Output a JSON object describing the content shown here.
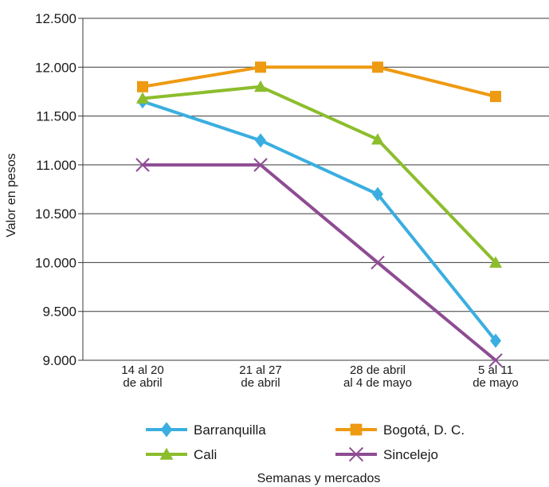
{
  "chart_data": {
    "type": "line",
    "xlabel": "Semanas y mercados",
    "ylabel": "Valor en pesos",
    "categories": [
      [
        "14 al 20",
        "de abril"
      ],
      [
        "21 al 27",
        "de abril"
      ],
      [
        "28 de abril",
        "al 4 de mayo"
      ],
      [
        "5 al 11",
        "de mayo"
      ]
    ],
    "yticks": [
      9000,
      9500,
      10000,
      10500,
      11000,
      11500,
      12000,
      12500
    ],
    "ytick_labels": [
      "9.000",
      "9.500",
      "10.000",
      "10.500",
      "11.000",
      "11.500",
      "12.000",
      "12.500"
    ],
    "ylim": [
      9000,
      12500
    ],
    "grid": "horizontal",
    "legend_position": "bottom",
    "series": [
      {
        "name": "Barranquilla",
        "values": [
          11650,
          11250,
          10700,
          9200
        ],
        "color": "#3aaee0",
        "marker": "diamond"
      },
      {
        "name": "Bogotá, D. C.",
        "values": [
          11800,
          12000,
          12000,
          11700
        ],
        "color": "#ee9a12",
        "marker": "square"
      },
      {
        "name": "Cali",
        "values": [
          11680,
          11800,
          11260,
          10000
        ],
        "color": "#8cbd2c",
        "marker": "triangle"
      },
      {
        "name": "Sincelejo",
        "values": [
          11000,
          11000,
          10000,
          9000
        ],
        "color": "#8e4c93",
        "marker": "x"
      }
    ]
  }
}
